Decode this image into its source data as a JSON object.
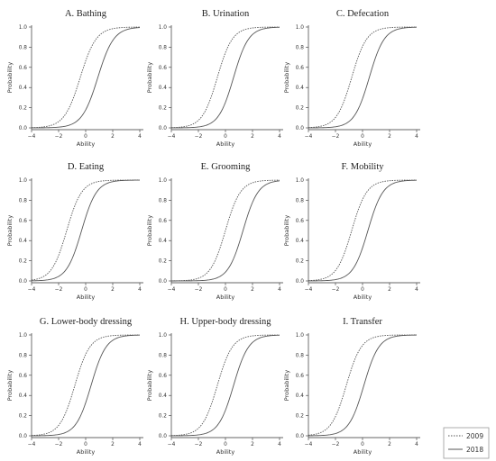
{
  "figure": {
    "legend_position": "bottom-right",
    "legend": [
      {
        "label": "2009",
        "style": "dotted"
      },
      {
        "label": "2018",
        "style": "solid"
      }
    ],
    "line_color": "#555555"
  },
  "chart_data": [
    {
      "type": "line",
      "title": "A. Bathing",
      "xlabel": "Ability",
      "ylabel": "Probability",
      "xlim": [
        -4,
        4
      ],
      "ylim": [
        0,
        1
      ],
      "x_ticks": [
        "−4",
        "−2",
        "0",
        "2",
        "4"
      ],
      "y_ticks": [
        "0.0",
        "0.2",
        "0.4",
        "0.6",
        "0.8",
        "1.0"
      ],
      "grid": false,
      "series": [
        {
          "name": "2009",
          "style": "dotted",
          "midpoint": -0.4,
          "slope": 1.7
        },
        {
          "name": "2018",
          "style": "solid",
          "midpoint": 0.9,
          "slope": 1.7
        }
      ]
    },
    {
      "type": "line",
      "title": "B. Urination",
      "xlabel": "Ability",
      "ylabel": "Probability",
      "xlim": [
        -4,
        4
      ],
      "ylim": [
        0,
        1
      ],
      "x_ticks": [
        "−4",
        "−2",
        "0",
        "2",
        "4"
      ],
      "y_ticks": [
        "0.0",
        "0.2",
        "0.4",
        "0.6",
        "0.8",
        "1.0"
      ],
      "grid": false,
      "series": [
        {
          "name": "2009",
          "style": "dotted",
          "midpoint": -0.6,
          "slope": 1.8
        },
        {
          "name": "2018",
          "style": "solid",
          "midpoint": 0.6,
          "slope": 1.8
        }
      ]
    },
    {
      "type": "line",
      "title": "C. Defecation",
      "xlabel": "Ability",
      "ylabel": "Probability",
      "xlim": [
        -4,
        4
      ],
      "ylim": [
        0,
        1
      ],
      "x_ticks": [
        "−4",
        "−2",
        "0",
        "2",
        "4"
      ],
      "y_ticks": [
        "0.0",
        "0.2",
        "0.4",
        "0.6",
        "0.8",
        "1.0"
      ],
      "grid": false,
      "series": [
        {
          "name": "2009",
          "style": "dotted",
          "midpoint": -0.8,
          "slope": 1.8
        },
        {
          "name": "2018",
          "style": "solid",
          "midpoint": 0.5,
          "slope": 1.8
        }
      ]
    },
    {
      "type": "line",
      "title": "D. Eating",
      "xlabel": "Ability",
      "ylabel": "Probability",
      "xlim": [
        -4,
        4
      ],
      "ylim": [
        0,
        1
      ],
      "x_ticks": [
        "−4",
        "−2",
        "0",
        "2",
        "4"
      ],
      "y_ticks": [
        "0.0",
        "0.2",
        "0.4",
        "0.6",
        "0.8",
        "1.0"
      ],
      "grid": false,
      "series": [
        {
          "name": "2009",
          "style": "dotted",
          "midpoint": -1.4,
          "slope": 1.8
        },
        {
          "name": "2018",
          "style": "solid",
          "midpoint": -0.3,
          "slope": 1.8
        }
      ]
    },
    {
      "type": "line",
      "title": "E. Grooming",
      "xlabel": "Ability",
      "ylabel": "Probability",
      "xlim": [
        -4,
        4
      ],
      "ylim": [
        0,
        1
      ],
      "x_ticks": [
        "−4",
        "−2",
        "0",
        "2",
        "4"
      ],
      "y_ticks": [
        "0.0",
        "0.2",
        "0.4",
        "0.6",
        "0.8",
        "1.0"
      ],
      "grid": false,
      "series": [
        {
          "name": "2009",
          "style": "dotted",
          "midpoint": 0.0,
          "slope": 1.8
        },
        {
          "name": "2018",
          "style": "solid",
          "midpoint": 1.3,
          "slope": 1.8
        }
      ]
    },
    {
      "type": "line",
      "title": "F. Mobility",
      "xlabel": "Ability",
      "ylabel": "Probability",
      "xlim": [
        -4,
        4
      ],
      "ylim": [
        0,
        1
      ],
      "x_ticks": [
        "−4",
        "−2",
        "0",
        "2",
        "4"
      ],
      "y_ticks": [
        "0.0",
        "0.2",
        "0.4",
        "0.6",
        "0.8",
        "1.0"
      ],
      "grid": false,
      "series": [
        {
          "name": "2009",
          "style": "dotted",
          "midpoint": -0.8,
          "slope": 1.8
        },
        {
          "name": "2018",
          "style": "solid",
          "midpoint": 0.4,
          "slope": 1.8
        }
      ]
    },
    {
      "type": "line",
      "title": "G. Lower-body dressing",
      "xlabel": "Ability",
      "ylabel": "Probability",
      "xlim": [
        -4,
        4
      ],
      "ylim": [
        0,
        1
      ],
      "x_ticks": [
        "−4",
        "−2",
        "0",
        "2",
        "4"
      ],
      "y_ticks": [
        "0.0",
        "0.2",
        "0.4",
        "0.6",
        "0.8",
        "1.0"
      ],
      "grid": false,
      "series": [
        {
          "name": "2009",
          "style": "dotted",
          "midpoint": -0.8,
          "slope": 1.8
        },
        {
          "name": "2018",
          "style": "solid",
          "midpoint": 0.4,
          "slope": 1.8
        }
      ]
    },
    {
      "type": "line",
      "title": "H. Upper-body dressing",
      "xlabel": "Ability",
      "ylabel": "Probability",
      "xlim": [
        -4,
        4
      ],
      "ylim": [
        0,
        1
      ],
      "x_ticks": [
        "−4",
        "−2",
        "0",
        "2",
        "4"
      ],
      "y_ticks": [
        "0.0",
        "0.2",
        "0.4",
        "0.6",
        "0.8",
        "1.0"
      ],
      "grid": false,
      "series": [
        {
          "name": "2009",
          "style": "dotted",
          "midpoint": -0.6,
          "slope": 1.8
        },
        {
          "name": "2018",
          "style": "solid",
          "midpoint": 0.6,
          "slope": 1.8
        }
      ]
    },
    {
      "type": "line",
      "title": "I. Transfer",
      "xlabel": "Ability",
      "ylabel": "Probability",
      "xlim": [
        -4,
        4
      ],
      "ylim": [
        0,
        1
      ],
      "x_ticks": [
        "−4",
        "−2",
        "0",
        "2",
        "4"
      ],
      "y_ticks": [
        "0.0",
        "0.2",
        "0.4",
        "0.6",
        "0.8",
        "1.0"
      ],
      "grid": false,
      "series": [
        {
          "name": "2009",
          "style": "dotted",
          "midpoint": -1.2,
          "slope": 1.8
        },
        {
          "name": "2018",
          "style": "solid",
          "midpoint": 0.1,
          "slope": 1.8
        }
      ]
    }
  ]
}
